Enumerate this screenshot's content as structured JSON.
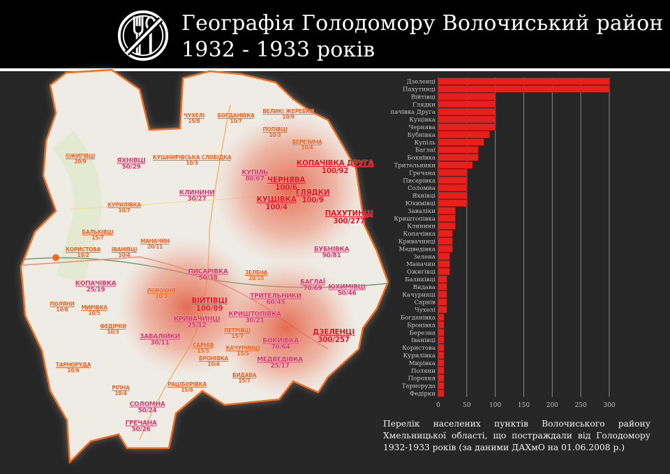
{
  "header": {
    "title_line1": "Географія Голодомору Волочиський район",
    "title_line2": "1932 - 1933 років",
    "logo_icon": "no-food-icon"
  },
  "map": {
    "labels": [
      {
        "name": "ЧУХЕЛІ",
        "value": "15/8"
      },
      {
        "name": "БОГДАНІВКА",
        "value": "10/7"
      },
      {
        "name": "ВЕЛИКІ ЖЕРЕБКИ",
        "value": "10/9"
      },
      {
        "name": "ПОПІВЦІ",
        "value": "10/3"
      },
      {
        "name": "ОЖИГІВЦІ",
        "value": "20/9"
      },
      {
        "name": "ЯХНІВЦІ",
        "value": "50/29"
      },
      {
        "name": "КУШНИРІВСЬКА СЛОБІДКА",
        "value": "10/3"
      },
      {
        "name": "БЕРЕЗИНА",
        "value": "10/4"
      },
      {
        "name": "КУПІЛЬ",
        "value": "80/67"
      },
      {
        "name": "ЧЕРНЯВА",
        "value": "100/6"
      },
      {
        "name": "КОПАЧІВКА ДРУГА",
        "value": "100/92"
      },
      {
        "name": "КУЩІВКА",
        "value": "100/4"
      },
      {
        "name": "ГЛЯДКИ",
        "value": "100/9"
      },
      {
        "name": "ПАХУТИНЦІ",
        "value": "300/277"
      },
      {
        "name": "КЛИНИНИ",
        "value": "30/27"
      },
      {
        "name": "КУРИЛІВКА",
        "value": "10/7"
      },
      {
        "name": "БАЛЬКІВЦІ",
        "value": "15/7"
      },
      {
        "name": "МАНАЧИН",
        "value": "20/11"
      },
      {
        "name": "ІВАНІВЦІ",
        "value": "10/4"
      },
      {
        "name": "КОРИСТОВА",
        "value": "10/2"
      },
      {
        "name": "БУБНІВКА",
        "value": "90/81"
      },
      {
        "name": "ПИСАРІВКА",
        "value": "50/38"
      },
      {
        "name": "ЗЕЛЕНА",
        "value": "20/15"
      },
      {
        "name": "КОПАЧІВКА",
        "value": "25/19"
      },
      {
        "name": "ПОРОХНЯ",
        "value": "10/3"
      },
      {
        "name": "ВІЙТІВЦІ",
        "value": "100/89"
      },
      {
        "name": "БАГЛАЇ",
        "value": "70/69"
      },
      {
        "name": "ЮХИМІВЦІ",
        "value": "50/46"
      },
      {
        "name": "ТРИТЕЛЬНИКИ",
        "value": "60/45"
      },
      {
        "name": "КРИШТОПІВКА",
        "value": "30/21"
      },
      {
        "name": "КРИВАЧИНЦІ",
        "value": "25/12"
      },
      {
        "name": "ПОЛЯНИ",
        "value": "10/6"
      },
      {
        "name": "МИРІВКА",
        "value": "10/5"
      },
      {
        "name": "ФЕДІРКИ",
        "value": "10/3"
      },
      {
        "name": "ЗАВАЛІЙКИ",
        "value": "30/11"
      },
      {
        "name": "САРНІВ",
        "value": "15/5"
      },
      {
        "name": "ПЕТРІВЦІ",
        "value": "15/7"
      },
      {
        "name": "КАЧУРИНЦІ",
        "value": "15/5"
      },
      {
        "name": "БОКИЇВКА",
        "value": "70/64"
      },
      {
        "name": "ДЗЕЛЕНЦІ",
        "value": "300/257"
      },
      {
        "name": "БРОНІВКА",
        "value": "10/4"
      },
      {
        "name": "МЕДВЕДІВКА",
        "value": "25/17"
      },
      {
        "name": "ТАРНОРУДА",
        "value": "10/6"
      },
      {
        "name": "ВИДАВА",
        "value": "15/7"
      },
      {
        "name": "РАЦІБОРІВКА",
        "value": "15/6"
      },
      {
        "name": "РІПНА",
        "value": "10/4"
      },
      {
        "name": "СОЛОМНА",
        "value": "50/24"
      },
      {
        "name": "ГРЕЧАНА",
        "value": "50/26"
      }
    ]
  },
  "chart_data": {
    "type": "bar",
    "orientation": "horizontal",
    "title": "",
    "xlabel": "",
    "ylabel": "",
    "xlim": [
      0,
      300
    ],
    "xticks": [
      "0",
      "50",
      "100",
      "150",
      "200",
      "250",
      "300"
    ],
    "grid": true,
    "bar_color": "#e8201c",
    "categories": [
      "Дзеленці",
      "Пахутинці",
      "Війтівці",
      "Глядки",
      "пачівка Друга",
      "Кущівка",
      "Чернява",
      "Бубнівка",
      "Купіль",
      "Баглаї",
      "Бокиївка",
      "Трительники",
      "Гречана",
      "Писарівка",
      "Соломна",
      "Яхнівці",
      "Юхимівці",
      "Заваліки",
      "Криштопівка",
      "Клинини",
      "Копачівка",
      "Кривачинці",
      "Медведівка",
      "Зелена",
      "Маначин",
      "Ожигівці",
      "Баликівці",
      "Видава",
      "Качуринці",
      "Сарнів",
      "Чухелі",
      "Богданівка",
      "Бронівка",
      "Березна",
      "Іванівці",
      "Користова",
      "Курилівка",
      "Мирівка",
      "Поляни",
      "Порохня",
      "Тарноруда",
      "Федірки"
    ],
    "values": [
      300,
      300,
      100,
      100,
      100,
      100,
      100,
      90,
      80,
      70,
      70,
      60,
      50,
      50,
      50,
      50,
      50,
      30,
      30,
      30,
      25,
      25,
      25,
      20,
      20,
      20,
      15,
      15,
      15,
      15,
      15,
      10,
      10,
      10,
      10,
      10,
      10,
      10,
      10,
      10,
      10,
      10
    ]
  },
  "caption": "Перелік  населених пунктів Волочиського району Хмельницької області, що постраждали від Голодомору 1932-1933 років (за даними ДАХмО на 01.06.2008 р.)"
}
